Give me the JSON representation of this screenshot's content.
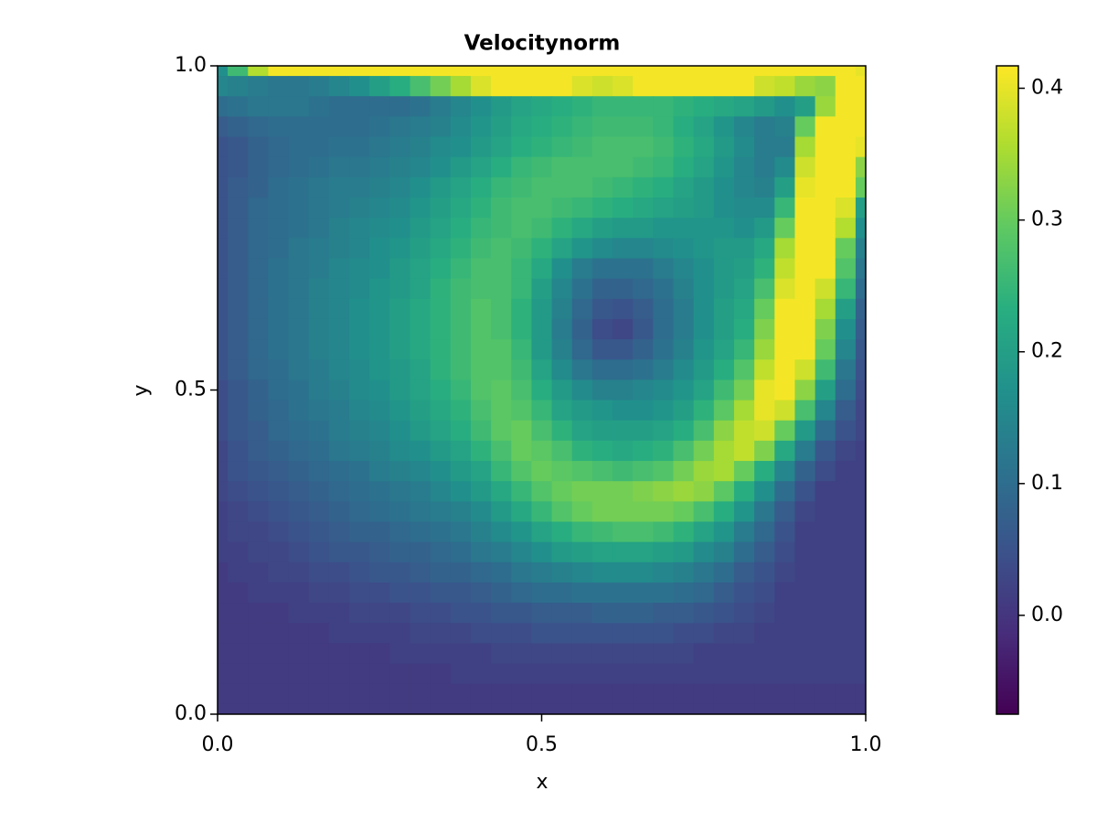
{
  "chart_data": {
    "type": "heatmap",
    "title": "Velocitynorm",
    "x_label": "x",
    "y_label": "y",
    "colormap": "viridis",
    "xlim": [
      0,
      1
    ],
    "ylim": [
      0,
      1
    ],
    "xticks": [
      {
        "value": 0,
        "label": "0.0"
      },
      {
        "value": 0.5,
        "label": "0.5"
      },
      {
        "value": 1,
        "label": "1.0"
      }
    ],
    "yticks": [
      {
        "value": 0,
        "label": "0.0"
      },
      {
        "value": 0.5,
        "label": "0.5"
      },
      {
        "value": 1,
        "label": "1.0"
      }
    ],
    "colorbar": {
      "lim": [
        -0.075,
        0.417
      ],
      "ticks": [
        {
          "value": 0,
          "label": "0.0"
        },
        0.1,
        0.2,
        0.3,
        0.4
      ]
    },
    "x": [
      0,
      0.03125,
      0.0625,
      0.09375,
      0.125,
      0.15625,
      0.1875,
      0.21875,
      0.25,
      0.28125,
      0.3125,
      0.34375,
      0.375,
      0.40625,
      0.4375,
      0.46875,
      0.5,
      0.53125,
      0.5625,
      0.59375,
      0.625,
      0.65625,
      0.6875,
      0.71875,
      0.75,
      0.78125,
      0.8125,
      0.84375,
      0.875,
      0.90625,
      0.9375,
      0.96875,
      1
    ],
    "y": [
      1,
      0.96875,
      0.9375,
      0.90625,
      0.875,
      0.84375,
      0.8125,
      0.78125,
      0.75,
      0.71875,
      0.6875,
      0.65625,
      0.625,
      0.59375,
      0.5625,
      0.53125,
      0.5,
      0.46875,
      0.4375,
      0.40625,
      0.375,
      0.34375,
      0.3125,
      0.28125,
      0.25,
      0.21875,
      0.1875,
      0.15625,
      0.125,
      0.09375,
      0.0625,
      0.03125,
      0
    ],
    "z": [
      [
        0.17,
        0.26,
        0.36,
        0.41,
        0.41,
        0.41,
        0.41,
        0.41,
        0.41,
        0.41,
        0.41,
        0.41,
        0.41,
        0.41,
        0.41,
        0.41,
        0.41,
        0.41,
        0.41,
        0.41,
        0.41,
        0.41,
        0.41,
        0.41,
        0.41,
        0.41,
        0.41,
        0.41,
        0.41,
        0.41,
        0.41,
        0.41,
        0.4
      ],
      [
        0.15,
        0.14,
        0.13,
        0.12,
        0.12,
        0.13,
        0.15,
        0.17,
        0.2,
        0.23,
        0.27,
        0.31,
        0.35,
        0.39,
        0.41,
        0.41,
        0.41,
        0.41,
        0.39,
        0.38,
        0.39,
        0.41,
        0.41,
        0.41,
        0.41,
        0.41,
        0.41,
        0.38,
        0.37,
        0.34,
        0.33,
        0.41,
        0.41
      ],
      [
        0.1,
        0.11,
        0.12,
        0.12,
        0.12,
        0.11,
        0.1,
        0.1,
        0.1,
        0.1,
        0.11,
        0.13,
        0.15,
        0.17,
        0.19,
        0.21,
        0.22,
        0.23,
        0.24,
        0.25,
        0.25,
        0.25,
        0.25,
        0.24,
        0.23,
        0.22,
        0.21,
        0.19,
        0.17,
        0.2,
        0.34,
        0.41,
        0.41
      ],
      [
        0.07,
        0.08,
        0.09,
        0.1,
        0.1,
        0.1,
        0.1,
        0.1,
        0.11,
        0.12,
        0.13,
        0.14,
        0.16,
        0.18,
        0.2,
        0.22,
        0.23,
        0.24,
        0.25,
        0.26,
        0.26,
        0.26,
        0.25,
        0.23,
        0.21,
        0.18,
        0.15,
        0.13,
        0.14,
        0.3,
        0.41,
        0.41,
        0.41
      ],
      [
        0.05,
        0.06,
        0.08,
        0.09,
        0.1,
        0.1,
        0.11,
        0.11,
        0.12,
        0.13,
        0.14,
        0.16,
        0.17,
        0.19,
        0.21,
        0.23,
        0.24,
        0.25,
        0.26,
        0.27,
        0.27,
        0.27,
        0.26,
        0.24,
        0.22,
        0.19,
        0.16,
        0.13,
        0.13,
        0.35,
        0.41,
        0.41,
        0.4
      ],
      [
        0.05,
        0.06,
        0.08,
        0.09,
        0.1,
        0.11,
        0.12,
        0.12,
        0.13,
        0.14,
        0.15,
        0.17,
        0.19,
        0.21,
        0.23,
        0.25,
        0.26,
        0.27,
        0.27,
        0.27,
        0.27,
        0.26,
        0.25,
        0.23,
        0.21,
        0.18,
        0.15,
        0.13,
        0.16,
        0.38,
        0.41,
        0.41,
        0.33
      ],
      [
        0.05,
        0.07,
        0.08,
        0.1,
        0.11,
        0.12,
        0.13,
        0.13,
        0.14,
        0.15,
        0.17,
        0.19,
        0.21,
        0.23,
        0.25,
        0.26,
        0.27,
        0.27,
        0.27,
        0.26,
        0.25,
        0.24,
        0.23,
        0.21,
        0.19,
        0.17,
        0.15,
        0.14,
        0.2,
        0.4,
        0.41,
        0.41,
        0.3
      ],
      [
        0.05,
        0.07,
        0.09,
        0.1,
        0.11,
        0.12,
        0.13,
        0.14,
        0.15,
        0.16,
        0.18,
        0.2,
        0.22,
        0.24,
        0.26,
        0.27,
        0.27,
        0.26,
        0.25,
        0.24,
        0.23,
        0.22,
        0.21,
        0.2,
        0.19,
        0.17,
        0.16,
        0.16,
        0.25,
        0.41,
        0.41,
        0.39,
        0.2
      ],
      [
        0.05,
        0.07,
        0.09,
        0.1,
        0.11,
        0.12,
        0.14,
        0.15,
        0.16,
        0.17,
        0.19,
        0.21,
        0.23,
        0.25,
        0.26,
        0.27,
        0.26,
        0.24,
        0.22,
        0.2,
        0.19,
        0.19,
        0.18,
        0.18,
        0.18,
        0.18,
        0.17,
        0.19,
        0.3,
        0.41,
        0.41,
        0.36,
        0.17
      ],
      [
        0.05,
        0.07,
        0.09,
        0.1,
        0.12,
        0.13,
        0.14,
        0.15,
        0.17,
        0.18,
        0.2,
        0.22,
        0.24,
        0.26,
        0.27,
        0.26,
        0.24,
        0.21,
        0.18,
        0.16,
        0.15,
        0.15,
        0.16,
        0.17,
        0.18,
        0.19,
        0.19,
        0.22,
        0.35,
        0.41,
        0.41,
        0.3,
        0.14
      ],
      [
        0.05,
        0.07,
        0.09,
        0.11,
        0.12,
        0.13,
        0.15,
        0.16,
        0.17,
        0.19,
        0.21,
        0.23,
        0.25,
        0.27,
        0.27,
        0.25,
        0.22,
        0.17,
        0.13,
        0.11,
        0.11,
        0.11,
        0.13,
        0.15,
        0.17,
        0.19,
        0.2,
        0.24,
        0.37,
        0.41,
        0.41,
        0.28,
        0.12
      ],
      [
        0.05,
        0.07,
        0.09,
        0.11,
        0.12,
        0.14,
        0.15,
        0.16,
        0.18,
        0.19,
        0.21,
        0.24,
        0.26,
        0.27,
        0.27,
        0.25,
        0.2,
        0.15,
        0.11,
        0.08,
        0.08,
        0.09,
        0.11,
        0.14,
        0.17,
        0.19,
        0.21,
        0.27,
        0.39,
        0.41,
        0.38,
        0.25,
        0.1
      ],
      [
        0.05,
        0.07,
        0.09,
        0.11,
        0.12,
        0.14,
        0.15,
        0.17,
        0.18,
        0.2,
        0.22,
        0.24,
        0.26,
        0.28,
        0.27,
        0.24,
        0.19,
        0.14,
        0.09,
        0.06,
        0.05,
        0.07,
        0.1,
        0.13,
        0.17,
        0.2,
        0.22,
        0.3,
        0.41,
        0.41,
        0.35,
        0.2,
        0.08
      ],
      [
        0.05,
        0.07,
        0.09,
        0.11,
        0.12,
        0.14,
        0.15,
        0.17,
        0.18,
        0.2,
        0.22,
        0.24,
        0.26,
        0.28,
        0.27,
        0.24,
        0.19,
        0.13,
        0.08,
        0.04,
        0.03,
        0.06,
        0.1,
        0.13,
        0.17,
        0.2,
        0.23,
        0.32,
        0.41,
        0.41,
        0.32,
        0.17,
        0.07
      ],
      [
        0.05,
        0.07,
        0.09,
        0.11,
        0.12,
        0.14,
        0.15,
        0.17,
        0.18,
        0.2,
        0.22,
        0.24,
        0.26,
        0.28,
        0.28,
        0.25,
        0.19,
        0.14,
        0.09,
        0.06,
        0.06,
        0.08,
        0.11,
        0.14,
        0.18,
        0.21,
        0.25,
        0.34,
        0.41,
        0.41,
        0.3,
        0.15,
        0.06
      ],
      [
        0.05,
        0.07,
        0.09,
        0.1,
        0.12,
        0.13,
        0.15,
        0.16,
        0.18,
        0.19,
        0.21,
        0.24,
        0.26,
        0.28,
        0.28,
        0.26,
        0.21,
        0.16,
        0.12,
        0.1,
        0.1,
        0.11,
        0.13,
        0.16,
        0.19,
        0.23,
        0.28,
        0.37,
        0.41,
        0.38,
        0.26,
        0.12,
        0.05
      ],
      [
        0.04,
        0.06,
        0.08,
        0.1,
        0.11,
        0.13,
        0.14,
        0.16,
        0.17,
        0.19,
        0.21,
        0.23,
        0.25,
        0.28,
        0.29,
        0.27,
        0.23,
        0.19,
        0.16,
        0.14,
        0.14,
        0.15,
        0.16,
        0.18,
        0.21,
        0.26,
        0.31,
        0.4,
        0.41,
        0.33,
        0.2,
        0.1,
        0.04
      ],
      [
        0.04,
        0.06,
        0.08,
        0.09,
        0.11,
        0.12,
        0.13,
        0.15,
        0.16,
        0.18,
        0.2,
        0.22,
        0.24,
        0.27,
        0.29,
        0.28,
        0.25,
        0.21,
        0.19,
        0.18,
        0.17,
        0.17,
        0.18,
        0.2,
        0.24,
        0.29,
        0.35,
        0.4,
        0.38,
        0.27,
        0.15,
        0.07,
        0.03
      ],
      [
        0.04,
        0.06,
        0.07,
        0.09,
        0.1,
        0.11,
        0.13,
        0.14,
        0.15,
        0.17,
        0.19,
        0.21,
        0.23,
        0.26,
        0.29,
        0.3,
        0.27,
        0.24,
        0.21,
        0.2,
        0.2,
        0.2,
        0.21,
        0.23,
        0.27,
        0.33,
        0.37,
        0.38,
        0.3,
        0.19,
        0.1,
        0.05,
        0.03
      ],
      [
        0.03,
        0.05,
        0.07,
        0.08,
        0.09,
        0.1,
        0.12,
        0.13,
        0.14,
        0.16,
        0.17,
        0.19,
        0.21,
        0.24,
        0.27,
        0.3,
        0.29,
        0.27,
        0.24,
        0.23,
        0.22,
        0.23,
        0.24,
        0.27,
        0.31,
        0.35,
        0.37,
        0.32,
        0.22,
        0.13,
        0.06,
        0.03,
        0.02
      ],
      [
        0.03,
        0.05,
        0.06,
        0.07,
        0.08,
        0.09,
        0.1,
        0.11,
        0.13,
        0.14,
        0.15,
        0.17,
        0.19,
        0.21,
        0.25,
        0.28,
        0.3,
        0.29,
        0.28,
        0.27,
        0.26,
        0.27,
        0.28,
        0.31,
        0.34,
        0.35,
        0.3,
        0.23,
        0.15,
        0.08,
        0.04,
        0.02,
        0.02
      ],
      [
        0.03,
        0.04,
        0.05,
        0.06,
        0.07,
        0.08,
        0.09,
        0.1,
        0.11,
        0.12,
        0.13,
        0.15,
        0.17,
        0.19,
        0.22,
        0.25,
        0.28,
        0.3,
        0.31,
        0.31,
        0.31,
        0.32,
        0.33,
        0.34,
        0.33,
        0.29,
        0.23,
        0.17,
        0.1,
        0.05,
        0.02,
        0.02,
        0.02
      ],
      [
        0.02,
        0.03,
        0.04,
        0.05,
        0.06,
        0.07,
        0.08,
        0.09,
        0.1,
        0.11,
        0.12,
        0.13,
        0.14,
        0.16,
        0.19,
        0.22,
        0.25,
        0.28,
        0.3,
        0.31,
        0.31,
        0.31,
        0.31,
        0.3,
        0.27,
        0.23,
        0.18,
        0.12,
        0.07,
        0.03,
        0.02,
        0.02,
        0.02
      ],
      [
        0.02,
        0.03,
        0.03,
        0.04,
        0.05,
        0.06,
        0.07,
        0.08,
        0.08,
        0.09,
        0.1,
        0.11,
        0.12,
        0.14,
        0.16,
        0.18,
        0.21,
        0.23,
        0.25,
        0.26,
        0.27,
        0.27,
        0.26,
        0.24,
        0.21,
        0.18,
        0.13,
        0.09,
        0.05,
        0.02,
        0.02,
        0.02,
        0.02
      ],
      [
        0.02,
        0.02,
        0.03,
        0.03,
        0.04,
        0.05,
        0.06,
        0.06,
        0.07,
        0.08,
        0.08,
        0.09,
        0.1,
        0.12,
        0.13,
        0.15,
        0.17,
        0.19,
        0.2,
        0.21,
        0.21,
        0.21,
        0.2,
        0.19,
        0.16,
        0.14,
        0.1,
        0.07,
        0.04,
        0.02,
        0.02,
        0.02,
        0.02
      ],
      [
        0.01,
        0.02,
        0.02,
        0.03,
        0.03,
        0.04,
        0.04,
        0.05,
        0.06,
        0.06,
        0.07,
        0.08,
        0.08,
        0.09,
        0.1,
        0.12,
        0.13,
        0.14,
        0.15,
        0.16,
        0.16,
        0.16,
        0.15,
        0.14,
        0.12,
        0.1,
        0.07,
        0.05,
        0.03,
        0.02,
        0.02,
        0.02,
        0.02
      ],
      [
        0.01,
        0.01,
        0.02,
        0.02,
        0.02,
        0.03,
        0.03,
        0.04,
        0.04,
        0.05,
        0.05,
        0.06,
        0.06,
        0.07,
        0.08,
        0.09,
        0.1,
        0.1,
        0.11,
        0.11,
        0.11,
        0.11,
        0.11,
        0.1,
        0.09,
        0.07,
        0.05,
        0.04,
        0.02,
        0.02,
        0.02,
        0.02,
        0.02
      ],
      [
        0.01,
        0.01,
        0.01,
        0.01,
        0.02,
        0.02,
        0.02,
        0.03,
        0.03,
        0.03,
        0.04,
        0.04,
        0.05,
        0.05,
        0.06,
        0.06,
        0.07,
        0.07,
        0.07,
        0.08,
        0.08,
        0.08,
        0.07,
        0.07,
        0.06,
        0.05,
        0.04,
        0.03,
        0.02,
        0.02,
        0.02,
        0.02,
        0.02
      ],
      [
        0.01,
        0.01,
        0.01,
        0.01,
        0.01,
        0.01,
        0.02,
        0.02,
        0.02,
        0.02,
        0.03,
        0.03,
        0.03,
        0.04,
        0.04,
        0.04,
        0.05,
        0.05,
        0.05,
        0.05,
        0.05,
        0.05,
        0.05,
        0.04,
        0.04,
        0.03,
        0.03,
        0.02,
        0.02,
        0.02,
        0.02,
        0.02,
        0.02
      ],
      [
        0.01,
        0.01,
        0.01,
        0.01,
        0.01,
        0.01,
        0.01,
        0.01,
        0.01,
        0.02,
        0.02,
        0.02,
        0.02,
        0.02,
        0.03,
        0.03,
        0.03,
        0.03,
        0.03,
        0.03,
        0.03,
        0.03,
        0.03,
        0.03,
        0.02,
        0.02,
        0.02,
        0.02,
        0.02,
        0.02,
        0.02,
        0.02,
        0.02
      ],
      [
        0.01,
        0.01,
        0.01,
        0.01,
        0.01,
        0.01,
        0.01,
        0.01,
        0.01,
        0.01,
        0.01,
        0.01,
        0.02,
        0.02,
        0.02,
        0.02,
        0.02,
        0.02,
        0.02,
        0.02,
        0.02,
        0.02,
        0.02,
        0.02,
        0.02,
        0.02,
        0.02,
        0.02,
        0.02,
        0.02,
        0.02,
        0.02,
        0.02
      ],
      [
        0.01,
        0.01,
        0.01,
        0.01,
        0.01,
        0.01,
        0.01,
        0.01,
        0.01,
        0.01,
        0.01,
        0.01,
        0.01,
        0.01,
        0.01,
        0.01,
        0.01,
        0.01,
        0.01,
        0.01,
        0.01,
        0.01,
        0.01,
        0.01,
        0.01,
        0.01,
        0.01,
        0.01,
        0.01,
        0.01,
        0.01,
        0.01,
        0.01
      ],
      [
        0.01,
        0.01,
        0.01,
        0.01,
        0.01,
        0.01,
        0.01,
        0.01,
        0.01,
        0.01,
        0.01,
        0.01,
        0.01,
        0.01,
        0.01,
        0.01,
        0.01,
        0.01,
        0.01,
        0.01,
        0.01,
        0.01,
        0.01,
        0.01,
        0.01,
        0.01,
        0.01,
        0.01,
        0.01,
        0.01,
        0.01,
        0.01,
        0.01
      ]
    ]
  }
}
